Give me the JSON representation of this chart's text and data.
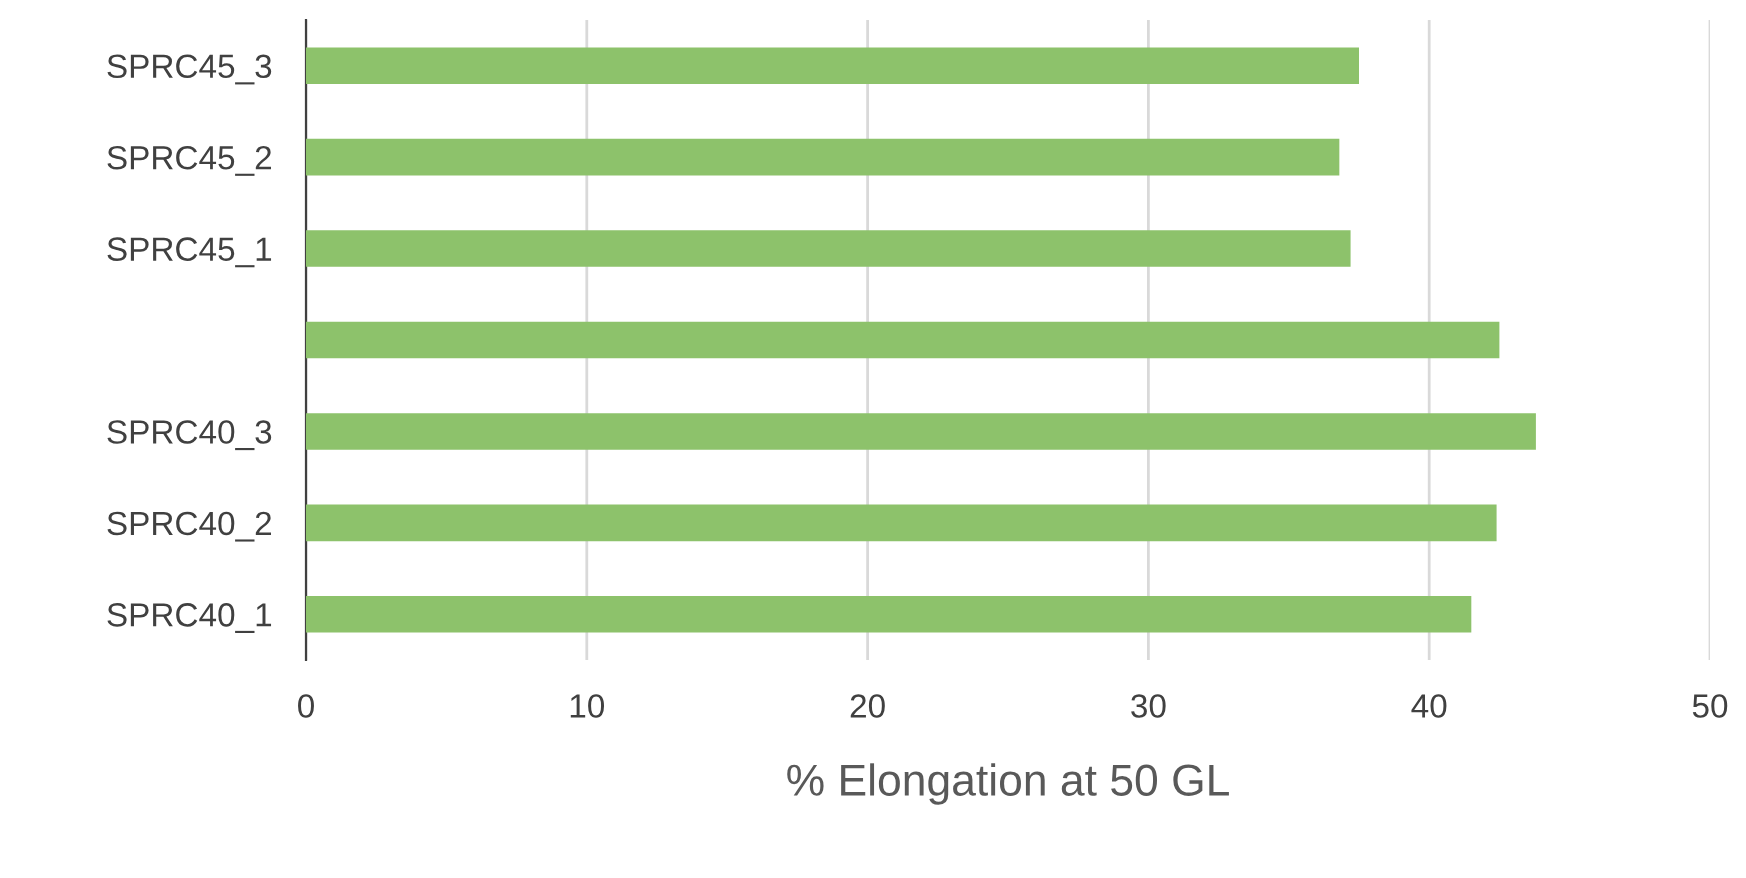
{
  "chart_data": {
    "type": "bar",
    "orientation": "horizontal",
    "xlabel": "% Elongation at 50 GL",
    "categories": [
      "SPRC45_3",
      "SPRC45_2",
      "SPRC45_1",
      null,
      "SPRC40_3",
      "SPRC40_2",
      "SPRC40_1"
    ],
    "values": [
      37.5,
      36.8,
      37.2,
      42.5,
      43.8,
      42.4,
      41.5
    ],
    "color": "#8dc26b",
    "xlim": [
      0,
      50
    ],
    "xticks": [
      0,
      10,
      20,
      30,
      40,
      50
    ],
    "grid": "x",
    "legend": false
  }
}
